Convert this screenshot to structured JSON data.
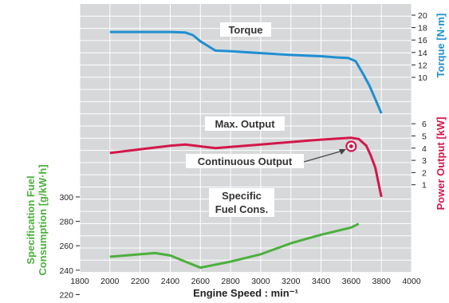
{
  "chart_data": {
    "type": "line",
    "xlabel": "Engine Speed : min⁻¹",
    "xlim": [
      1800,
      4000
    ],
    "xticks": [
      "1800",
      "2000",
      "2200",
      "2400",
      "2600",
      "2800",
      "3000",
      "3200",
      "3400",
      "3600",
      "3800",
      "4000"
    ],
    "grid": true,
    "axes": {
      "torque": {
        "label": "Torque [N·m]",
        "ticks": [
          "10",
          "12",
          "14",
          "16",
          "18",
          "20"
        ],
        "side": "right",
        "color": "#1f8fd0"
      },
      "power": {
        "label": "Power Output [kW]",
        "ticks": [
          "1",
          "2",
          "3",
          "4",
          "5",
          "6"
        ],
        "side": "right",
        "color": "#d3174a"
      },
      "fuel": {
        "label_line1": "Specification Fuel",
        "label_line2": "Consumption [g/kW·h]",
        "ticks": [
          "220",
          "240",
          "260",
          "280",
          "300"
        ],
        "side": "left",
        "color": "#4caf3c"
      }
    },
    "annotations": {
      "torque": "Torque",
      "max_output": "Max. Output",
      "continuous_output": "Continuous Output",
      "fuel_line1": "Specific",
      "fuel_line2": "Fuel Cons."
    },
    "series": [
      {
        "name": "Torque",
        "axis": "torque",
        "color": "#1f8fd0",
        "x": [
          2000,
          2200,
          2400,
          2500,
          2550,
          2600,
          2700,
          2800,
          3000,
          3200,
          3400,
          3500,
          3580,
          3630,
          3680,
          3720,
          3760,
          3800
        ],
        "y": [
          17.3,
          17.3,
          17.3,
          17.2,
          16.8,
          15.8,
          14.3,
          14.2,
          13.9,
          13.6,
          13.4,
          13.2,
          13.1,
          12.6,
          10.5,
          8.7,
          6.5,
          4.2
        ]
      },
      {
        "name": "Max. Output",
        "axis": "power",
        "color": "#d3174a",
        "x": [
          2000,
          2200,
          2400,
          2500,
          2600,
          2700,
          2800,
          3000,
          3200,
          3400,
          3600,
          3650,
          3700,
          3730,
          3760,
          3800
        ],
        "y": [
          3.6,
          3.9,
          4.2,
          4.3,
          4.15,
          4.0,
          4.1,
          4.3,
          4.5,
          4.7,
          4.85,
          4.75,
          4.2,
          3.4,
          2.4,
          0.0
        ]
      },
      {
        "name": "Specific Fuel Cons.",
        "axis": "fuel",
        "color": "#4caf3c",
        "x": [
          2000,
          2200,
          2300,
          2400,
          2500,
          2600,
          2800,
          3000,
          3200,
          3400,
          3600,
          3650
        ],
        "y": [
          251,
          253,
          254,
          252,
          247,
          242,
          247,
          253,
          262,
          269,
          275,
          278
        ]
      }
    ],
    "continuous_output_point": {
      "x": 3600,
      "y": 4.15
    }
  }
}
